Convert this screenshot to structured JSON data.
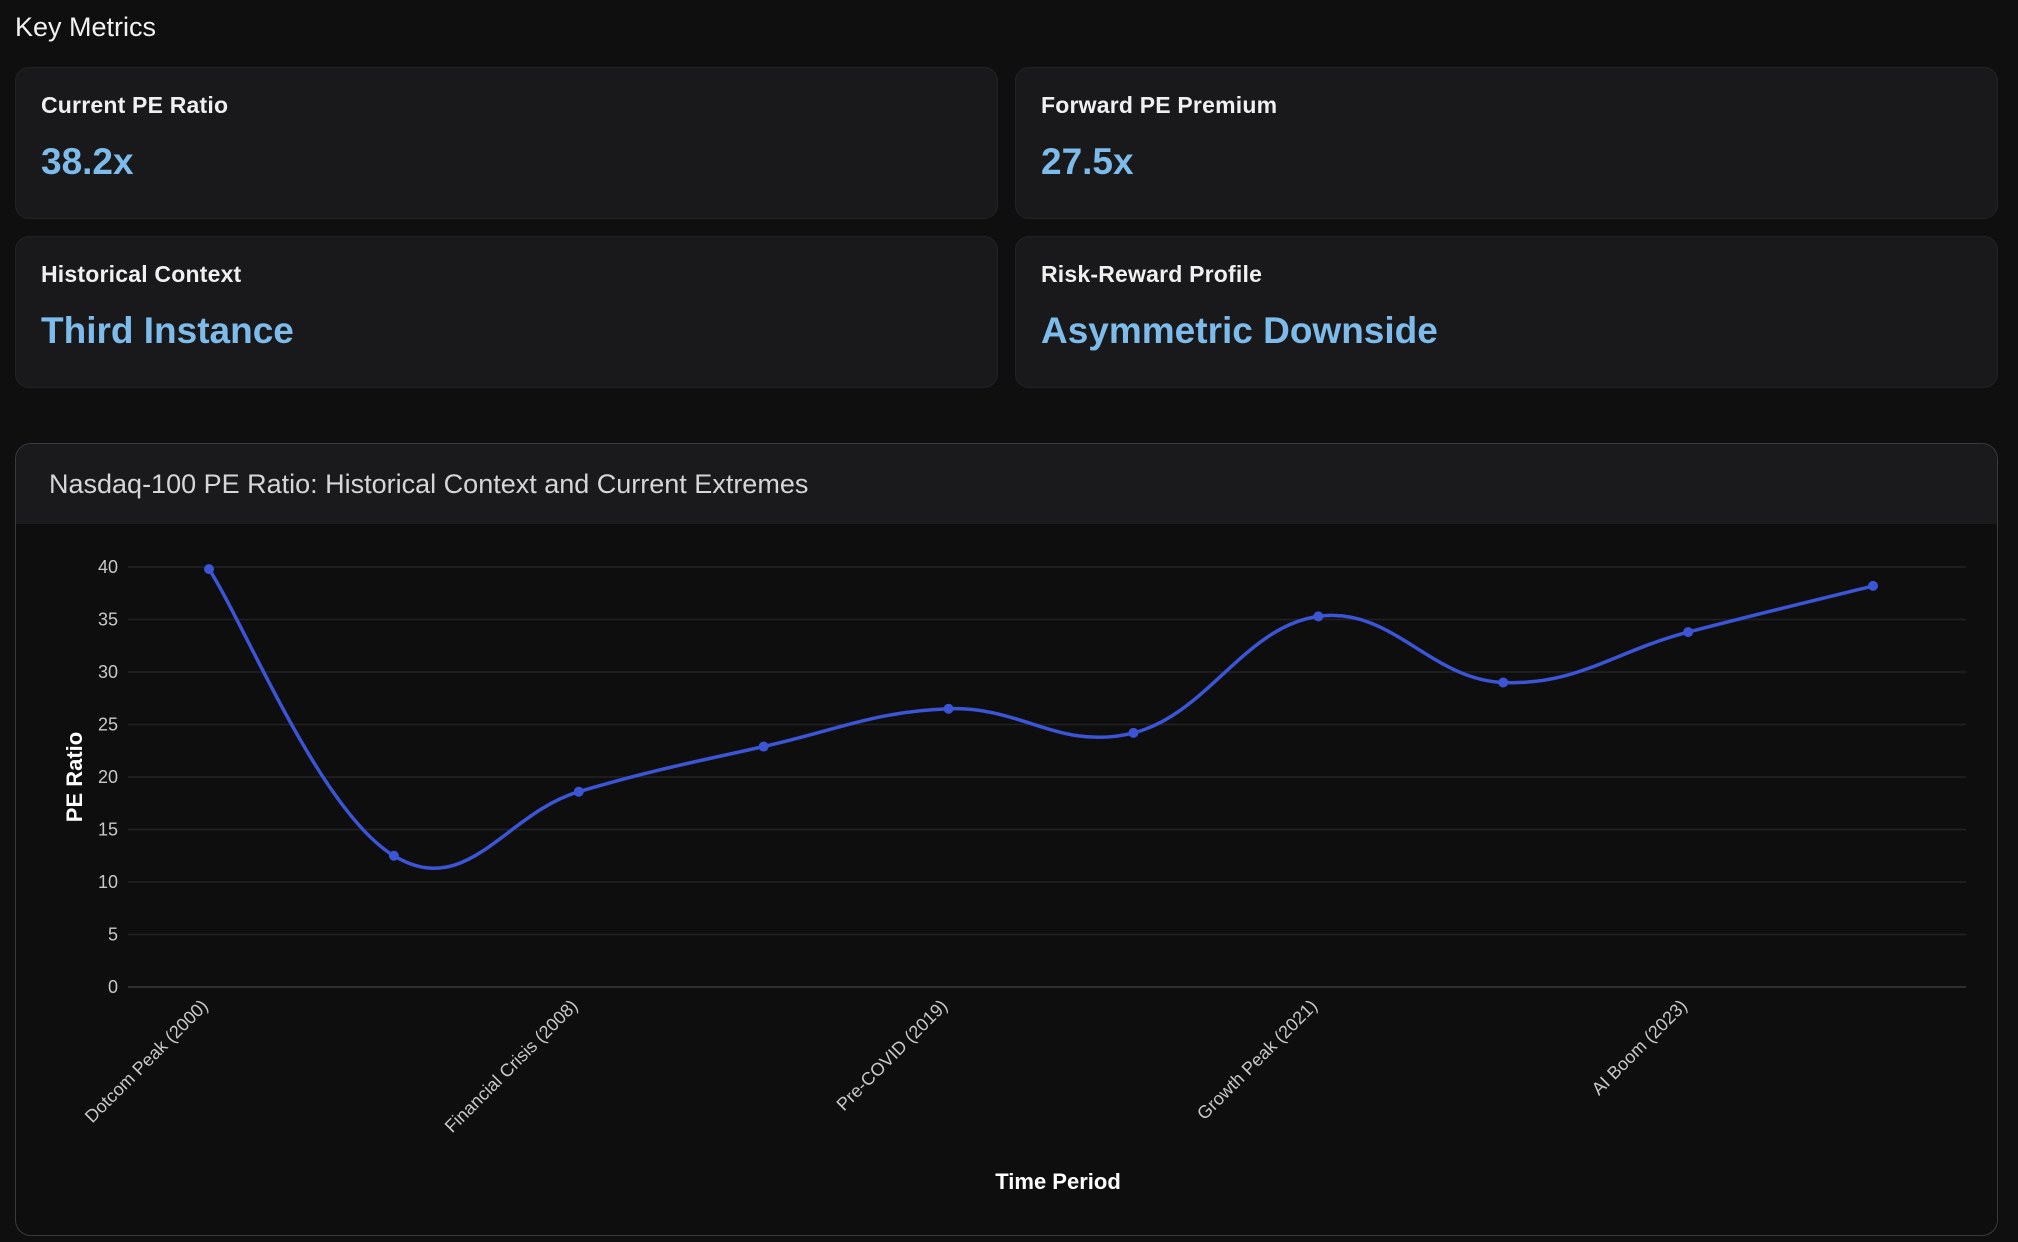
{
  "page": {
    "section_title": "Key Metrics"
  },
  "metrics": [
    {
      "label": "Current PE Ratio",
      "value": "38.2x"
    },
    {
      "label": "Forward PE Premium",
      "value": "27.5x"
    },
    {
      "label": "Historical Context",
      "value": "Third Instance"
    },
    {
      "label": "Risk-Reward Profile",
      "value": "Asymmetric Downside"
    }
  ],
  "colors": {
    "accent": "#7dbbea",
    "line": "#3b55d6",
    "background": "#0f0f10",
    "card": "#19191b"
  },
  "chart_data": {
    "type": "line",
    "title": "Nasdaq-100 PE Ratio: Historical Context and Current Extremes",
    "xlabel": "Time Period",
    "ylabel": "PE Ratio",
    "categories": [
      "Dotcom Peak (2000)",
      "",
      "Financial Crisis (2008)",
      "",
      "Pre-COVID (2019)",
      "",
      "Growth Peak (2021)",
      "",
      "AI Boom (2023)",
      ""
    ],
    "series": [
      {
        "values": [
          39.8,
          12.5,
          18.6,
          22.9,
          26.5,
          24.2,
          35.3,
          29.0,
          33.8,
          38.2
        ]
      }
    ],
    "ylim": [
      0,
      40
    ],
    "yticks": [
      "0",
      "5",
      "10",
      "15",
      "20",
      "25",
      "30",
      "35",
      "40"
    ],
    "grid": true,
    "legend": "none"
  }
}
